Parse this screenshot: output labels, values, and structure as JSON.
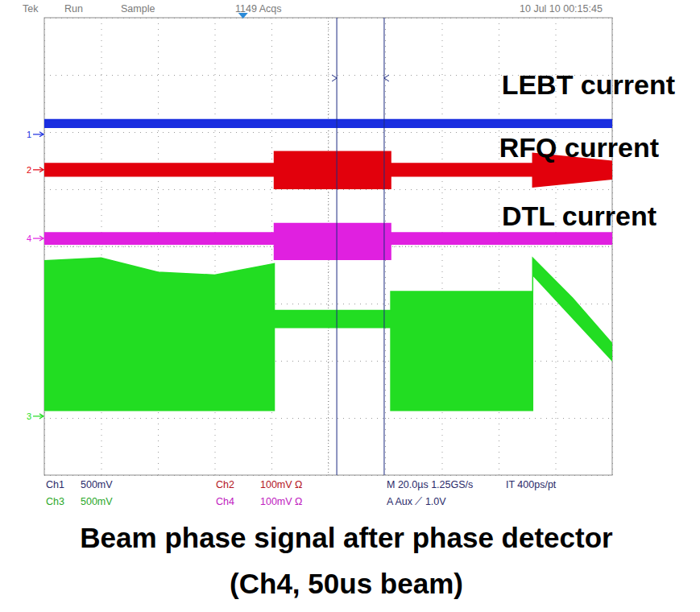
{
  "chart_data": {
    "type": "area",
    "title": "Beam phase signal after phase detector",
    "subtitle": "(Ch4, 50us beam)",
    "annotations": [
      {
        "text": "Tek"
      },
      {
        "text": "Run"
      },
      {
        "text": "Sample"
      },
      {
        "text": "1149 Acqs"
      },
      {
        "text": "10 Jul 10 00:15:45"
      },
      {
        "text": "Ch1"
      },
      {
        "text": "500mV"
      },
      {
        "text": "Ch3"
      },
      {
        "text": "500mV"
      },
      {
        "text": "Ch2"
      },
      {
        "text": "100mV Ω"
      },
      {
        "text": "Ch4"
      },
      {
        "text": "100mV Ω"
      },
      {
        "text": "M 20.0µs 1.25GS/s"
      },
      {
        "text": "IT 400ps/pt"
      },
      {
        "text": "A Aux ⟋ 1.0V"
      }
    ],
    "xlim": [
      0,
      200
    ],
    "ylim": [
      -4,
      4
    ],
    "xticks": [
      0,
      20,
      40,
      60,
      80,
      100,
      120,
      140,
      160,
      180,
      200
    ],
    "yticks": [
      -4,
      -3,
      -2,
      -1,
      0,
      1,
      2,
      3,
      4
    ],
    "tick_labels": false,
    "grid": true,
    "cursors": [
      103,
      119.7
    ],
    "trigger": 70,
    "series": [
      {
        "name": "LEBT current",
        "channel": "1",
        "color": "#1a2ee0",
        "ground": 1.96,
        "x": [
          0,
          200
        ],
        "high": [
          2.22,
          2.22
        ],
        "low": [
          2.08,
          2.08
        ]
      },
      {
        "name": "RFQ current",
        "channel": "2",
        "color": "#e2000c",
        "ground": 1.34,
        "x": [
          0,
          81,
          81,
          122,
          122,
          172,
          172,
          200
        ],
        "high": [
          1.45,
          1.45,
          1.66,
          1.66,
          1.45,
          1.45,
          1.63,
          1.49
        ],
        "low": [
          1.23,
          1.23,
          1.01,
          1.01,
          1.23,
          1.23,
          1.04,
          1.18
        ]
      },
      {
        "name": "DTL current",
        "channel": "4",
        "color": "#e020e0",
        "ground": 0.14,
        "x": [
          0,
          81,
          81,
          122,
          122,
          200
        ],
        "high": [
          0.24,
          0.24,
          0.4,
          0.4,
          0.24,
          0.24
        ],
        "low": [
          0.04,
          0.04,
          -0.23,
          -0.23,
          0.04,
          0.04
        ]
      },
      {
        "channel": "3",
        "color": "#22dd22",
        "ground": -2.97,
        "x": [
          0,
          20,
          40,
          60,
          81,
          81,
          122,
          122,
          172,
          172,
          186,
          200
        ],
        "high": [
          -0.25,
          -0.2,
          -0.45,
          -0.5,
          -0.3,
          -1.12,
          -1.12,
          -0.79,
          -0.79,
          -0.2,
          -0.9,
          -1.7
        ],
        "low": [
          -2.87,
          -2.87,
          -2.87,
          -2.87,
          -2.87,
          -1.42,
          -1.42,
          -2.87,
          -2.87,
          -0.5,
          -1.25,
          -2.0
        ]
      }
    ]
  }
}
